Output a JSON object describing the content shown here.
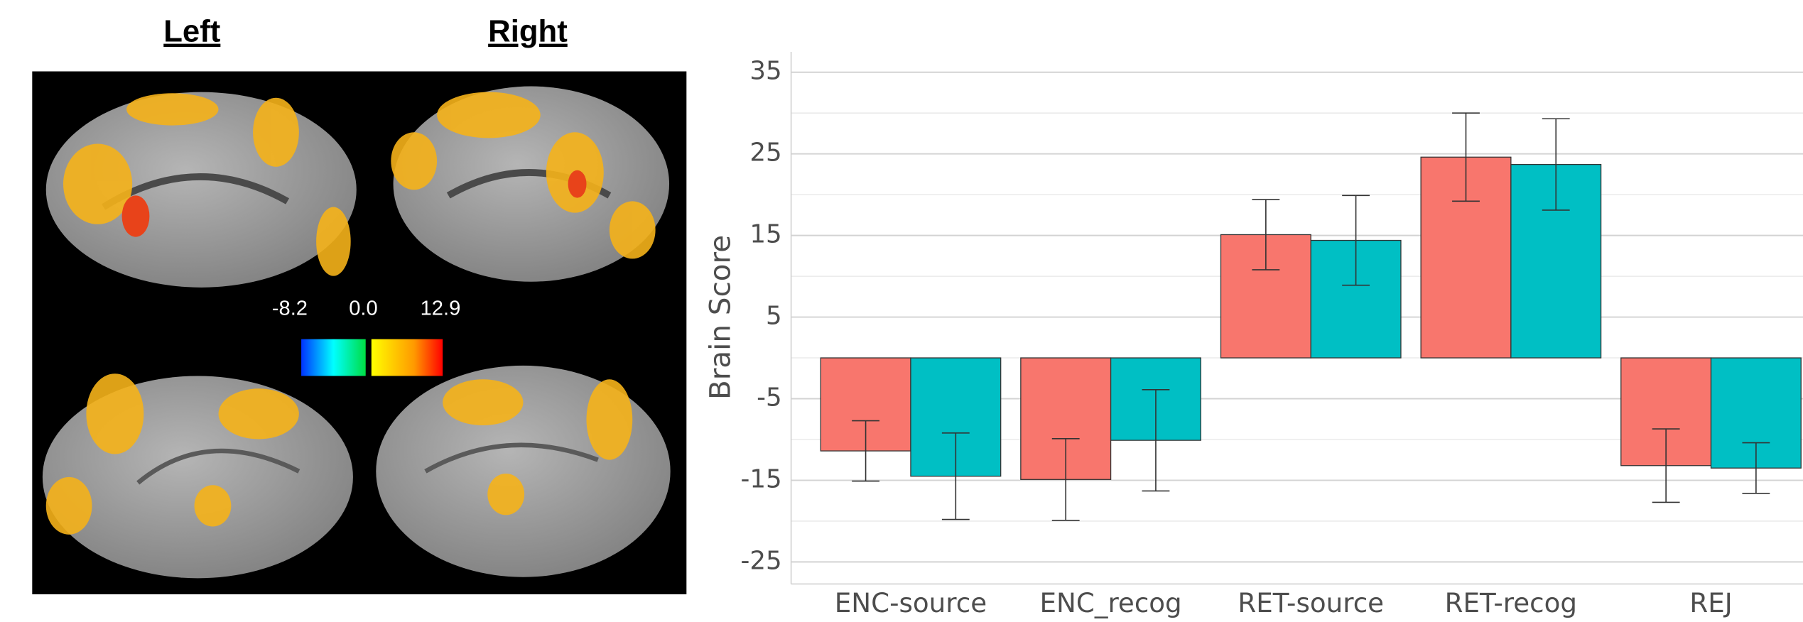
{
  "brain_map": {
    "left_label": "Left",
    "right_label": "Right",
    "colorbar_ticks": [
      -8.2,
      {
        "value": 0,
        "label": "0.0"
      },
      12.9
    ]
  },
  "chart_data": {
    "type": "bar",
    "ylabel": "Brain Score",
    "categories": [
      "ENC-source",
      "ENC_recog",
      "RET-source",
      "RET-recog",
      "REJ"
    ],
    "series": [
      {
        "color": "#f8766d",
        "values": [
          -11.4,
          -14.9,
          15.1,
          24.6,
          -13.2
        ],
        "errors": [
          3.7,
          5.0,
          4.3,
          5.4,
          4.5
        ]
      },
      {
        "color": "#00bfc4",
        "values": [
          -14.5,
          -10.1,
          14.4,
          23.7,
          -13.5
        ],
        "errors": [
          5.3,
          6.2,
          5.5,
          5.6,
          3.1
        ]
      }
    ],
    "ylim": [
      -27.7,
      37.5
    ],
    "yticks": [
      -25,
      -15,
      -5,
      5,
      15,
      25,
      35
    ],
    "grid": true
  }
}
